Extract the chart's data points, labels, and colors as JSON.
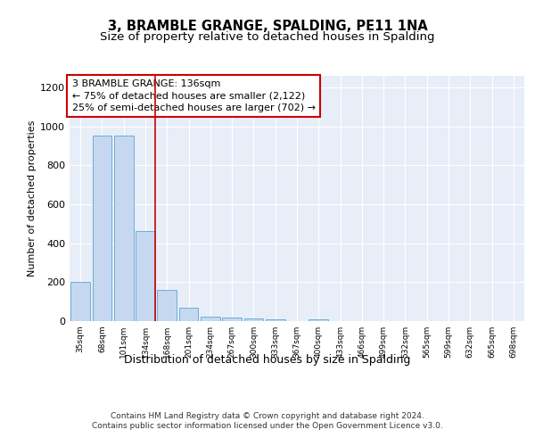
{
  "title1": "3, BRAMBLE GRANGE, SPALDING, PE11 1NA",
  "title2": "Size of property relative to detached houses in Spalding",
  "xlabel": "Distribution of detached houses by size in Spalding",
  "ylabel": "Number of detached properties",
  "bar_labels": [
    "35sqm",
    "68sqm",
    "101sqm",
    "134sqm",
    "168sqm",
    "201sqm",
    "234sqm",
    "267sqm",
    "300sqm",
    "333sqm",
    "367sqm",
    "400sqm",
    "433sqm",
    "466sqm",
    "499sqm",
    "532sqm",
    "565sqm",
    "599sqm",
    "632sqm",
    "665sqm",
    "698sqm"
  ],
  "bar_heights": [
    203,
    952,
    955,
    462,
    160,
    70,
    25,
    20,
    15,
    10,
    0,
    10,
    0,
    0,
    0,
    0,
    0,
    0,
    0,
    0,
    0
  ],
  "bar_color": "#c5d8f0",
  "bar_edge_color": "#6baed6",
  "bar_linewidth": 0.7,
  "vline_x_index": 3,
  "vline_color": "#cc0000",
  "annotation_text": "3 BRAMBLE GRANGE: 136sqm\n← 75% of detached houses are smaller (2,122)\n25% of semi-detached houses are larger (702) →",
  "annotation_box_color": "#ffffff",
  "annotation_box_edge": "#cc0000",
  "bg_color": "#e8eef8",
  "ylim": [
    0,
    1260
  ],
  "yticks": [
    0,
    200,
    400,
    600,
    800,
    1000,
    1200
  ],
  "footer_text": "Contains HM Land Registry data © Crown copyright and database right 2024.\nContains public sector information licensed under the Open Government Licence v3.0.",
  "title1_fontsize": 10.5,
  "title2_fontsize": 9.5,
  "annotation_fontsize": 8,
  "footer_fontsize": 6.5,
  "xlabel_fontsize": 9,
  "ylabel_fontsize": 8
}
